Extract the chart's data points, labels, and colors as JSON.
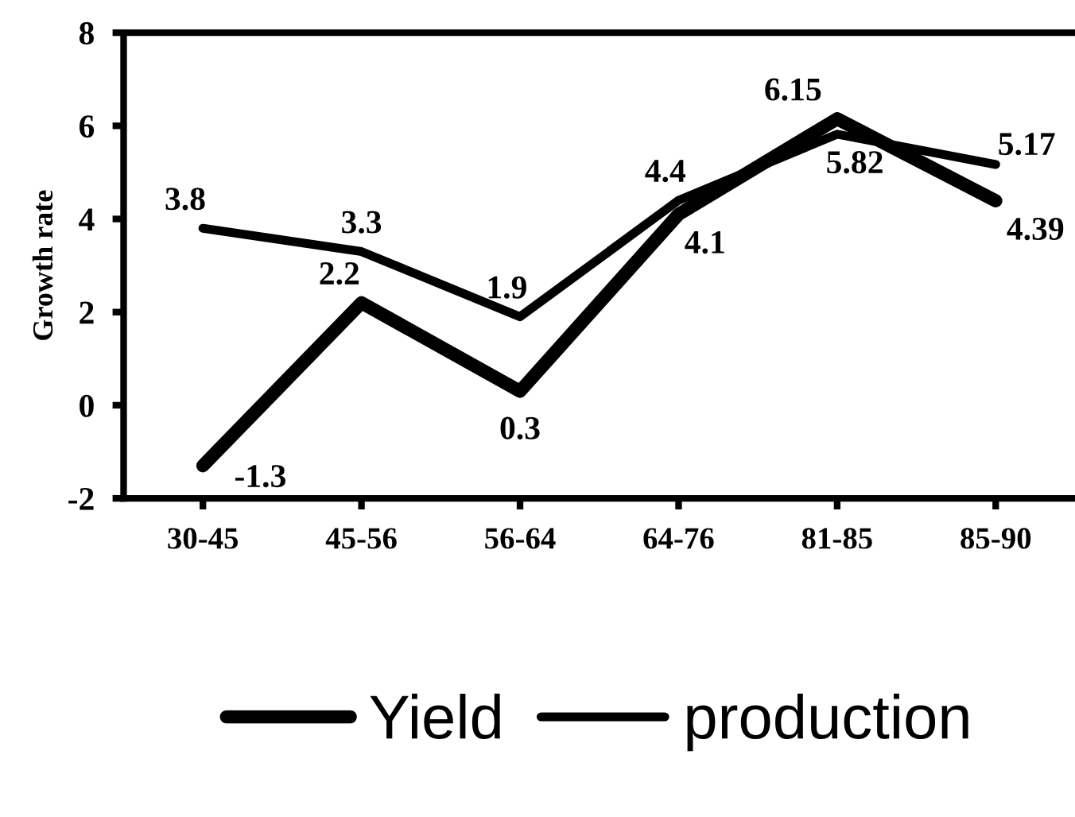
{
  "chart_data": {
    "type": "line",
    "ylabel": "Growth rate",
    "categories": [
      "30-45",
      "45-56",
      "56-64",
      "64-76",
      "81-85",
      "85-90"
    ],
    "series": [
      {
        "name": "Yield",
        "color": "#000000",
        "values": [
          -1.3,
          2.2,
          0.3,
          4.1,
          6.15,
          4.39
        ]
      },
      {
        "name": "production",
        "color": "#000000",
        "values": [
          3.8,
          3.3,
          1.9,
          4.4,
          5.82,
          5.17
        ]
      }
    ],
    "ylim": [
      -2,
      8
    ],
    "yticks": [
      -2,
      0,
      2,
      4,
      6,
      8
    ],
    "grid": false,
    "legend": "bottom",
    "data_labels": true,
    "marker": "none",
    "line_style": "solid"
  }
}
